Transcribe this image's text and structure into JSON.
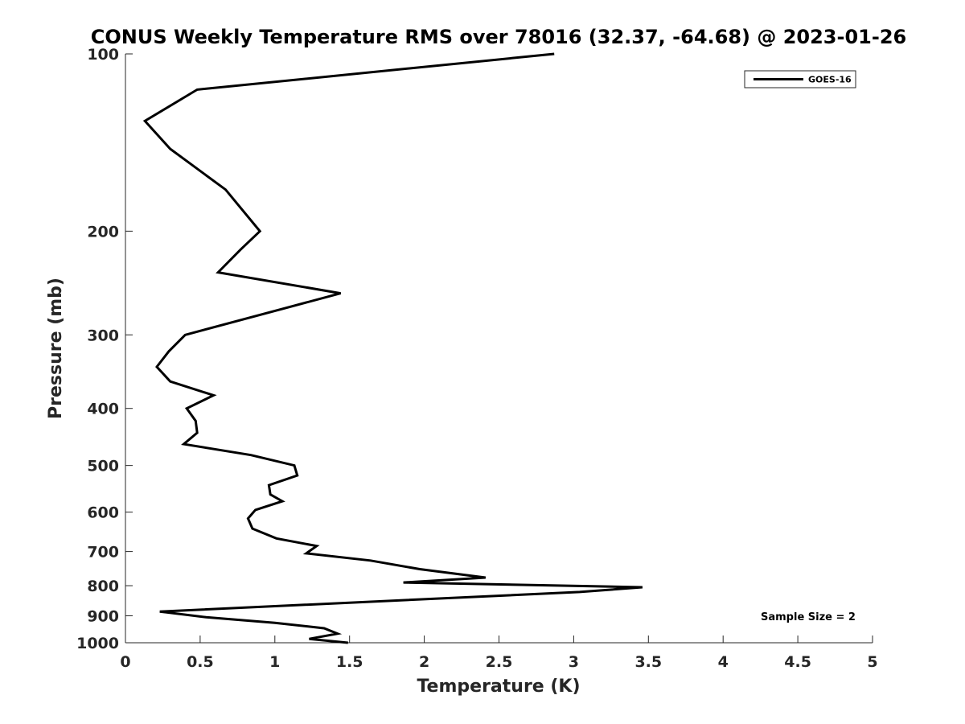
{
  "chart_data": {
    "type": "line",
    "title": "CONUS Weekly Temperature RMS over 78016 (32.37, -64.68) @ 2023-01-26",
    "xlabel": "Temperature (K)",
    "ylabel": "Pressure (mb)",
    "xlim": [
      0,
      5
    ],
    "ylim": [
      100,
      1000
    ],
    "y_scale": "log",
    "y_reversed": true,
    "x_ticks": [
      "0",
      "0.5",
      "1",
      "1.5",
      "2",
      "2.5",
      "3",
      "3.5",
      "4",
      "4.5",
      "5"
    ],
    "y_ticks": [
      "100",
      "200",
      "300",
      "400",
      "500",
      "600",
      "700",
      "800",
      "900",
      "1000"
    ],
    "grid": false,
    "legend_position": "top-right",
    "annotation": "Sample Size = 2",
    "colors": {
      "series": "#000000",
      "axis": "#262626"
    },
    "series": [
      {
        "name": "GOES-16",
        "x": [
          2.87,
          0.48,
          0.13,
          0.3,
          0.67,
          0.9,
          0.77,
          0.62,
          1.44,
          0.4,
          0.29,
          0.21,
          0.3,
          0.59,
          0.41,
          0.47,
          0.48,
          0.39,
          0.84,
          1.13,
          1.15,
          0.96,
          0.97,
          1.05,
          0.87,
          0.82,
          0.85,
          1.01,
          1.28,
          1.21,
          1.64,
          1.97,
          2.41,
          1.86,
          3.46,
          3.04,
          0.23,
          0.54,
          1.0,
          1.33,
          1.42,
          1.23,
          1.49
        ],
        "y": [
          100,
          115,
          130,
          145,
          170,
          200,
          215,
          235,
          255,
          300,
          320,
          340,
          360,
          380,
          400,
          420,
          440,
          460,
          480,
          500,
          520,
          540,
          560,
          575,
          595,
          615,
          640,
          665,
          685,
          705,
          725,
          750,
          775,
          790,
          805,
          820,
          885,
          905,
          925,
          945,
          965,
          985,
          1000
        ]
      }
    ]
  }
}
